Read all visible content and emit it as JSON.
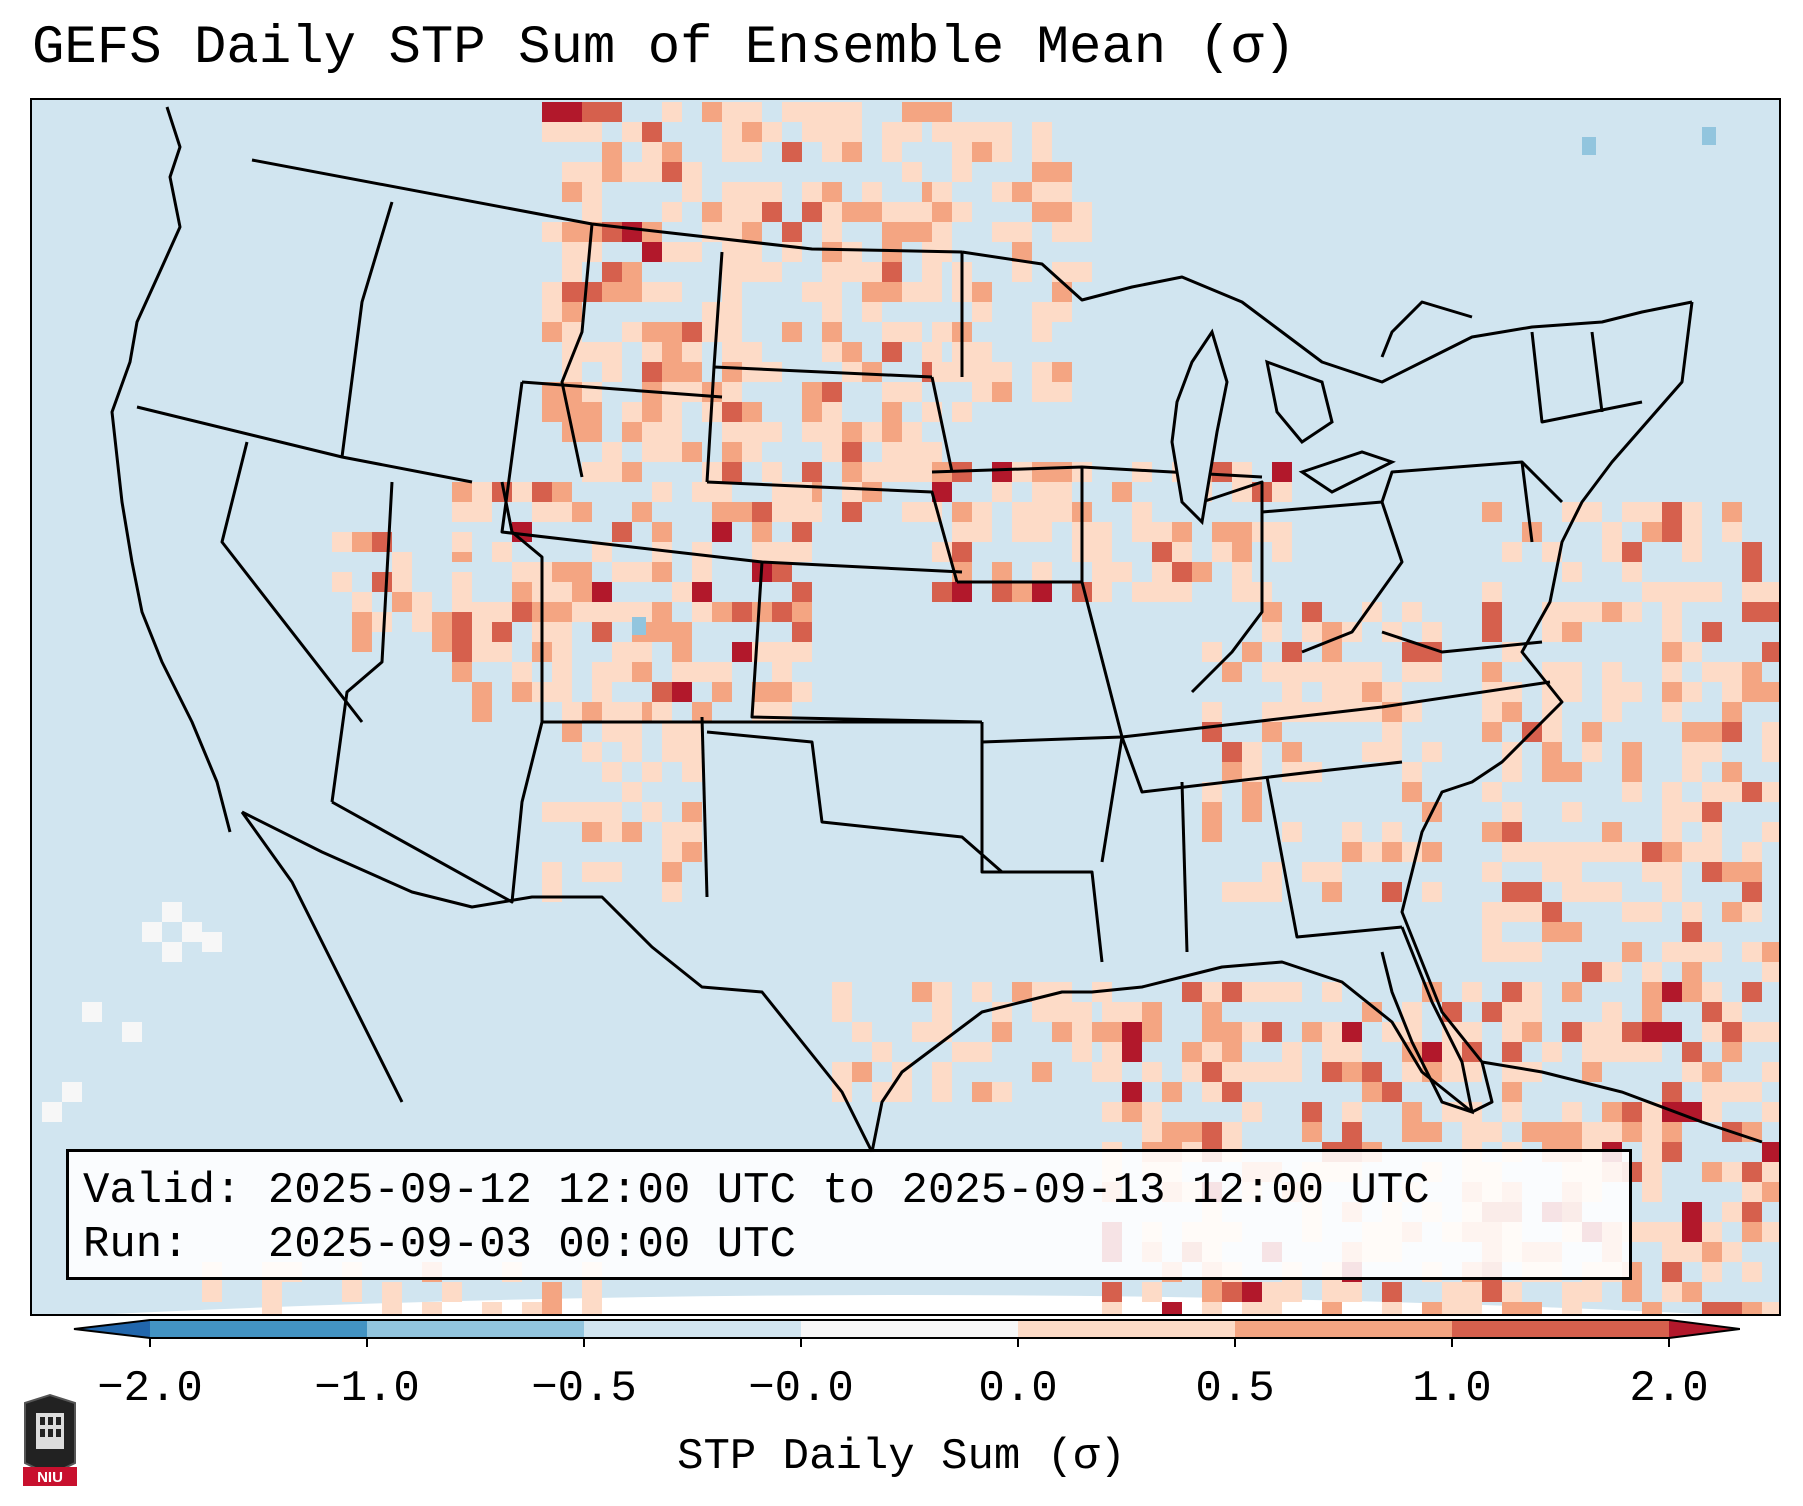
{
  "title": "GEFS Daily STP Sum of Ensemble Mean (σ)",
  "info": {
    "valid_label": "Valid:",
    "valid_value": "2025-09-12 12:00 UTC to 2025-09-13 12:00 UTC",
    "run_label": "Run:",
    "run_value": "2025-09-03 00:00 UTC"
  },
  "colorbar": {
    "label": "STP Daily Sum (σ)",
    "ticks": [
      "−2.0",
      "−1.0",
      "−0.5",
      "−0.0",
      "0.0",
      "0.5",
      "1.0",
      "2.0"
    ],
    "bins": [
      {
        "range": "<-2.0",
        "color": "#2166ac"
      },
      {
        "range": "-2.0 to -1.0",
        "color": "#4393c3"
      },
      {
        "range": "-1.0 to -0.5",
        "color": "#92c5de"
      },
      {
        "range": "-0.5 to -0.0",
        "color": "#d1e5f0"
      },
      {
        "range": "-0.0 to 0.0",
        "color": "#f7f7f7"
      },
      {
        "range": "0.0 to 0.5",
        "color": "#fddbc7"
      },
      {
        "range": "0.5 to 1.0",
        "color": "#f4a582"
      },
      {
        "range": "1.0 to 2.0",
        "color": "#d6604d"
      },
      {
        "range": ">2.0",
        "color": "#b2182b"
      }
    ]
  },
  "logo_text": "NIU",
  "colors": {
    "background_field": "#d1e5f0",
    "neutral": "#f7f7f7",
    "low_positive": "#fddbc7",
    "mid_positive": "#f4a582",
    "high_positive": "#d6604d",
    "extreme_positive": "#b2182b",
    "negative": "#92c5de"
  }
}
